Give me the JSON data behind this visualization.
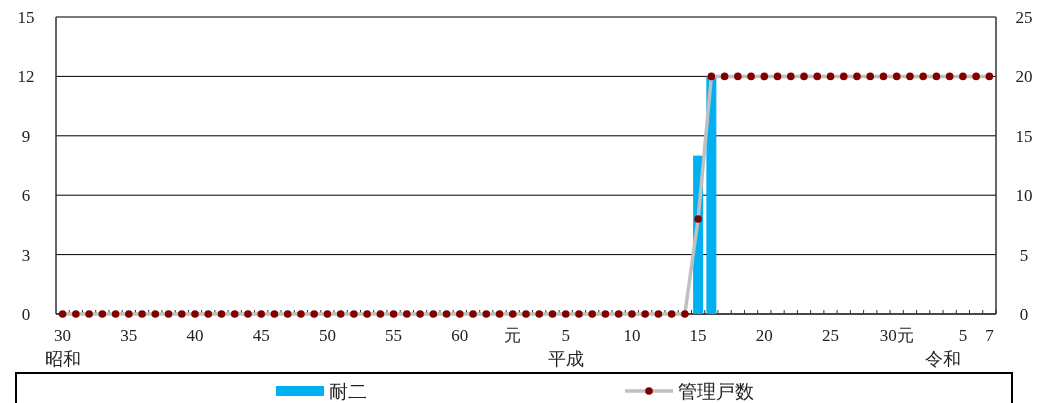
{
  "chart_data": {
    "type": "bar",
    "categories": [
      "30",
      null,
      null,
      null,
      null,
      "35",
      null,
      null,
      null,
      null,
      "40",
      null,
      null,
      null,
      null,
      "45",
      null,
      null,
      null,
      null,
      "50",
      null,
      null,
      null,
      null,
      "55",
      null,
      null,
      null,
      null,
      "60",
      null,
      null,
      null,
      "元",
      null,
      null,
      null,
      "5",
      null,
      null,
      null,
      null,
      "10",
      null,
      null,
      null,
      null,
      "15",
      null,
      null,
      null,
      null,
      "20",
      null,
      null,
      null,
      null,
      "25",
      null,
      null,
      null,
      null,
      "30元",
      null,
      null,
      null,
      null,
      "5",
      null,
      "7"
    ],
    "series": [
      {
        "name": "耐二",
        "color": "#00b0f0",
        "values": [
          0,
          0,
          0,
          0,
          0,
          0,
          0,
          0,
          0,
          0,
          0,
          0,
          0,
          0,
          0,
          0,
          0,
          0,
          0,
          0,
          0,
          0,
          0,
          0,
          0,
          0,
          0,
          0,
          0,
          0,
          0,
          0,
          0,
          0,
          0,
          0,
          0,
          0,
          0,
          0,
          0,
          0,
          0,
          0,
          0,
          0,
          0,
          0,
          8,
          12,
          0,
          0,
          0,
          0,
          0,
          0,
          0,
          0,
          0,
          0,
          0,
          0,
          0,
          0,
          0,
          0,
          0,
          0,
          0,
          0,
          0
        ]
      },
      {
        "name": "管理戸数",
        "type": "line",
        "axis": "y2",
        "color": "#800000",
        "marker": "circle",
        "values": [
          0,
          0,
          0,
          0,
          0,
          0,
          0,
          0,
          0,
          0,
          0,
          0,
          0,
          0,
          0,
          0,
          0,
          0,
          0,
          0,
          0,
          0,
          0,
          0,
          0,
          0,
          0,
          0,
          0,
          0,
          0,
          0,
          0,
          0,
          0,
          0,
          0,
          0,
          0,
          0,
          0,
          0,
          0,
          0,
          0,
          0,
          0,
          0,
          8,
          20,
          20,
          20,
          20,
          20,
          20,
          20,
          20,
          20,
          20,
          20,
          20,
          20,
          20,
          20,
          20,
          20,
          20,
          20,
          20,
          20,
          20
        ]
      }
    ],
    "ylim": [
      0,
      15
    ],
    "yticks": [
      0,
      3,
      6,
      9,
      12,
      15
    ],
    "y2lim": [
      0,
      25
    ],
    "y2ticks": [
      0,
      5,
      10,
      15,
      20,
      25
    ],
    "grid": "y",
    "legend": "bottom",
    "annotations": [
      "昭和",
      "平成",
      "令和"
    ]
  }
}
